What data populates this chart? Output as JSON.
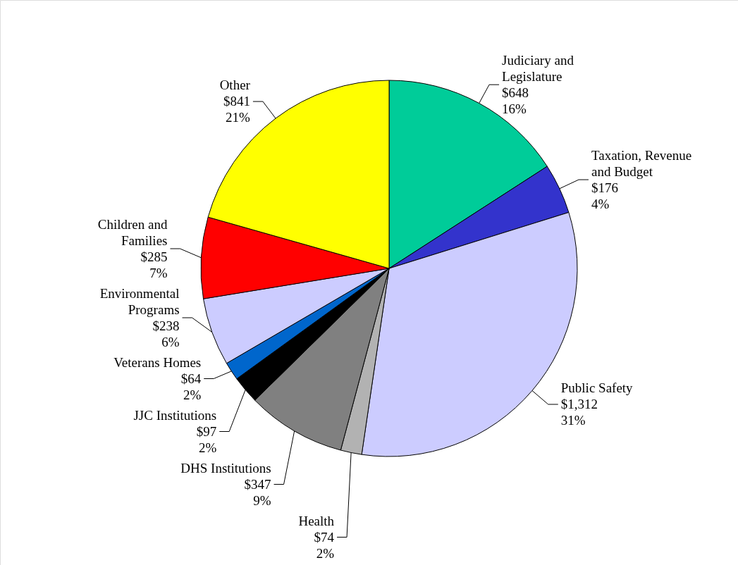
{
  "chart_data": {
    "type": "pie",
    "categories": [
      "Judiciary and Legislature",
      "Taxation, Revenue and Budget",
      "Public Safety",
      "Health",
      "DHS Institutions",
      "JJC Institutions",
      "Veterans Homes",
      "Environmental Programs",
      "Children and Families",
      "Other"
    ],
    "values": [
      648,
      176,
      1312,
      74,
      347,
      97,
      64,
      238,
      285,
      841
    ],
    "value_labels": [
      "$648\n16%",
      "$176\n4%",
      "$1,312\n31%",
      "$74\n2%",
      "$347\n9%",
      "$97\n2%",
      "$64\n2%",
      "$238\n6%",
      "$285\n7%",
      "$841\n21%"
    ],
    "colors": [
      "#00cc99",
      "#3333cc",
      "#ccccff",
      "#b2b2b2",
      "#808080",
      "#000000",
      "#0066cc",
      "#ccccff",
      "#ff0000",
      "#ffff00"
    ]
  }
}
